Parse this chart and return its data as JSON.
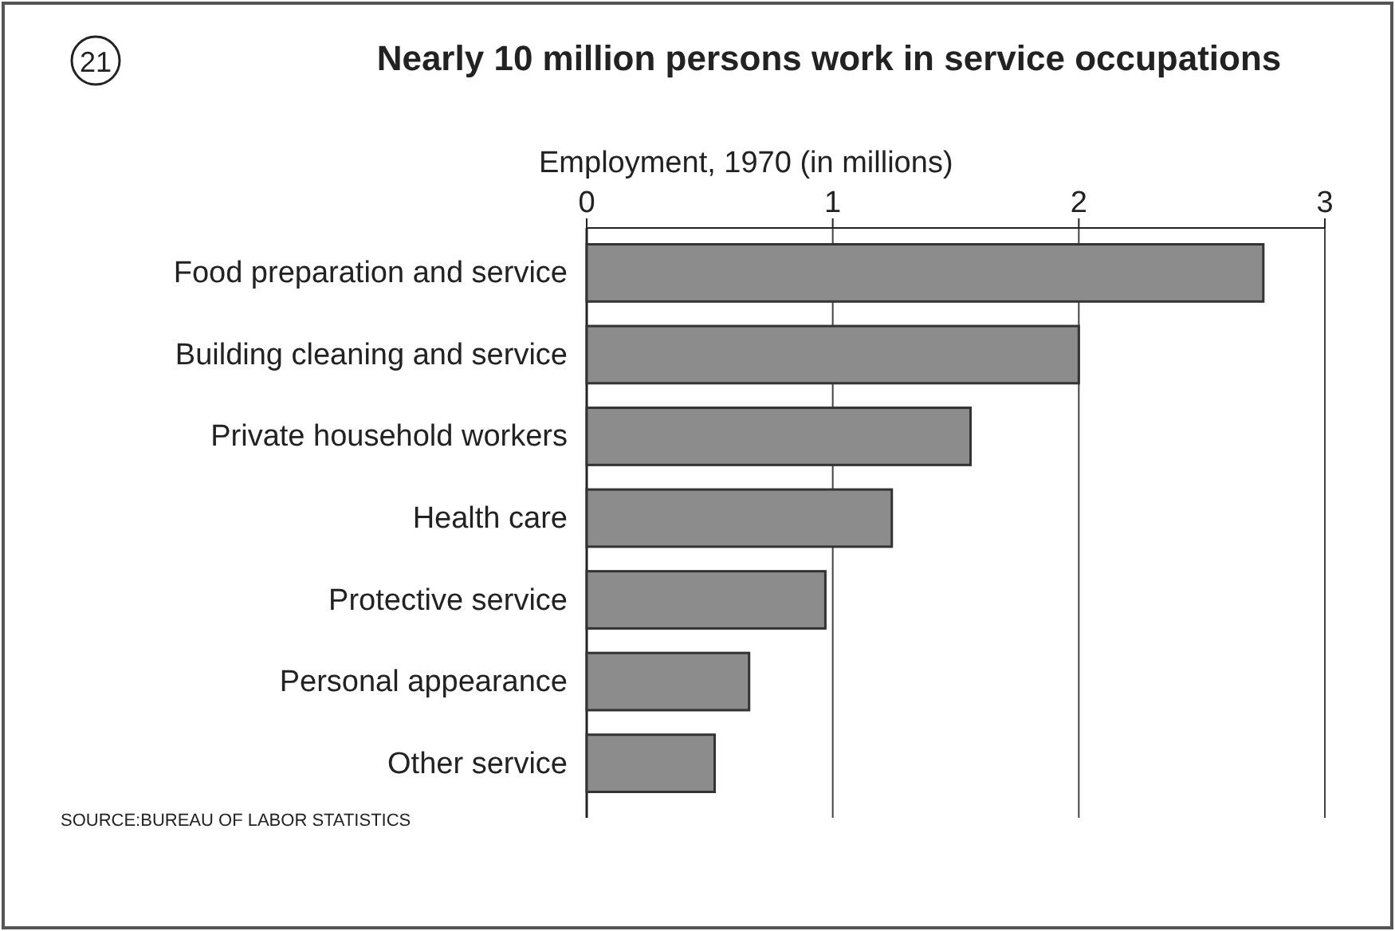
{
  "chart_data": {
    "type": "bar",
    "orientation": "horizontal",
    "title": "Nearly 10 million persons work in service occupations",
    "xlabel": "Employment, 1970 (in millions)",
    "categories": [
      "Food preparation and service",
      "Building cleaning and service",
      "Private household workers",
      "Health care",
      "Protective service",
      "Personal appearance",
      "Other service"
    ],
    "values": [
      2.75,
      2.0,
      1.56,
      1.24,
      0.97,
      0.66,
      0.52
    ],
    "color": "#8c8c8c",
    "xlim": [
      0,
      3
    ],
    "xticks": [
      0,
      1,
      2,
      3
    ],
    "grid": "x",
    "annotations": [
      "21",
      "SOURCE:BUREAU OF LABOR STATISTICS"
    ]
  }
}
